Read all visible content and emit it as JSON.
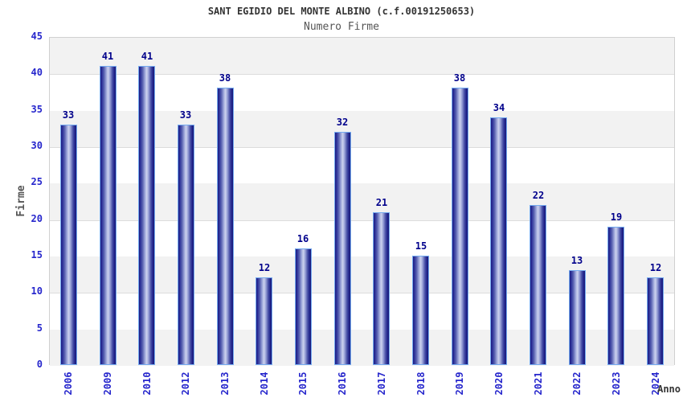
{
  "header": {
    "title": "SANT EGIDIO DEL MONTE ALBINO (c.f.00191250653)",
    "subtitle": "Numero Firme"
  },
  "chart_data": {
    "type": "bar",
    "title": "SANT EGIDIO DEL MONTE ALBINO (c.f.00191250653)",
    "subtitle": "Numero Firme",
    "categories": [
      "2006",
      "2009",
      "2010",
      "2012",
      "2013",
      "2014",
      "2015",
      "2016",
      "2017",
      "2018",
      "2019",
      "2020",
      "2021",
      "2022",
      "2023",
      "2024"
    ],
    "values": [
      33,
      41,
      41,
      33,
      38,
      12,
      16,
      32,
      21,
      15,
      38,
      34,
      22,
      13,
      19,
      12
    ],
    "xlabel": "Anno",
    "ylabel": "Firme",
    "ylim": [
      0,
      45
    ],
    "ytick_step": 5,
    "grid": true,
    "legend": "none",
    "colors": {
      "tick_label": "#2626cc",
      "value_label": "#00008b",
      "title": "#333333",
      "subtitle": "#555555",
      "axis_label": "#555555",
      "band_gray": "#f2f2f2",
      "gridline": "#dcdcdc",
      "plot_border": "#d0d0d0",
      "bar_dark": "#1c1c82",
      "bar_highlight": "#cdd3ef",
      "bar_border": "#74aaf0"
    }
  }
}
